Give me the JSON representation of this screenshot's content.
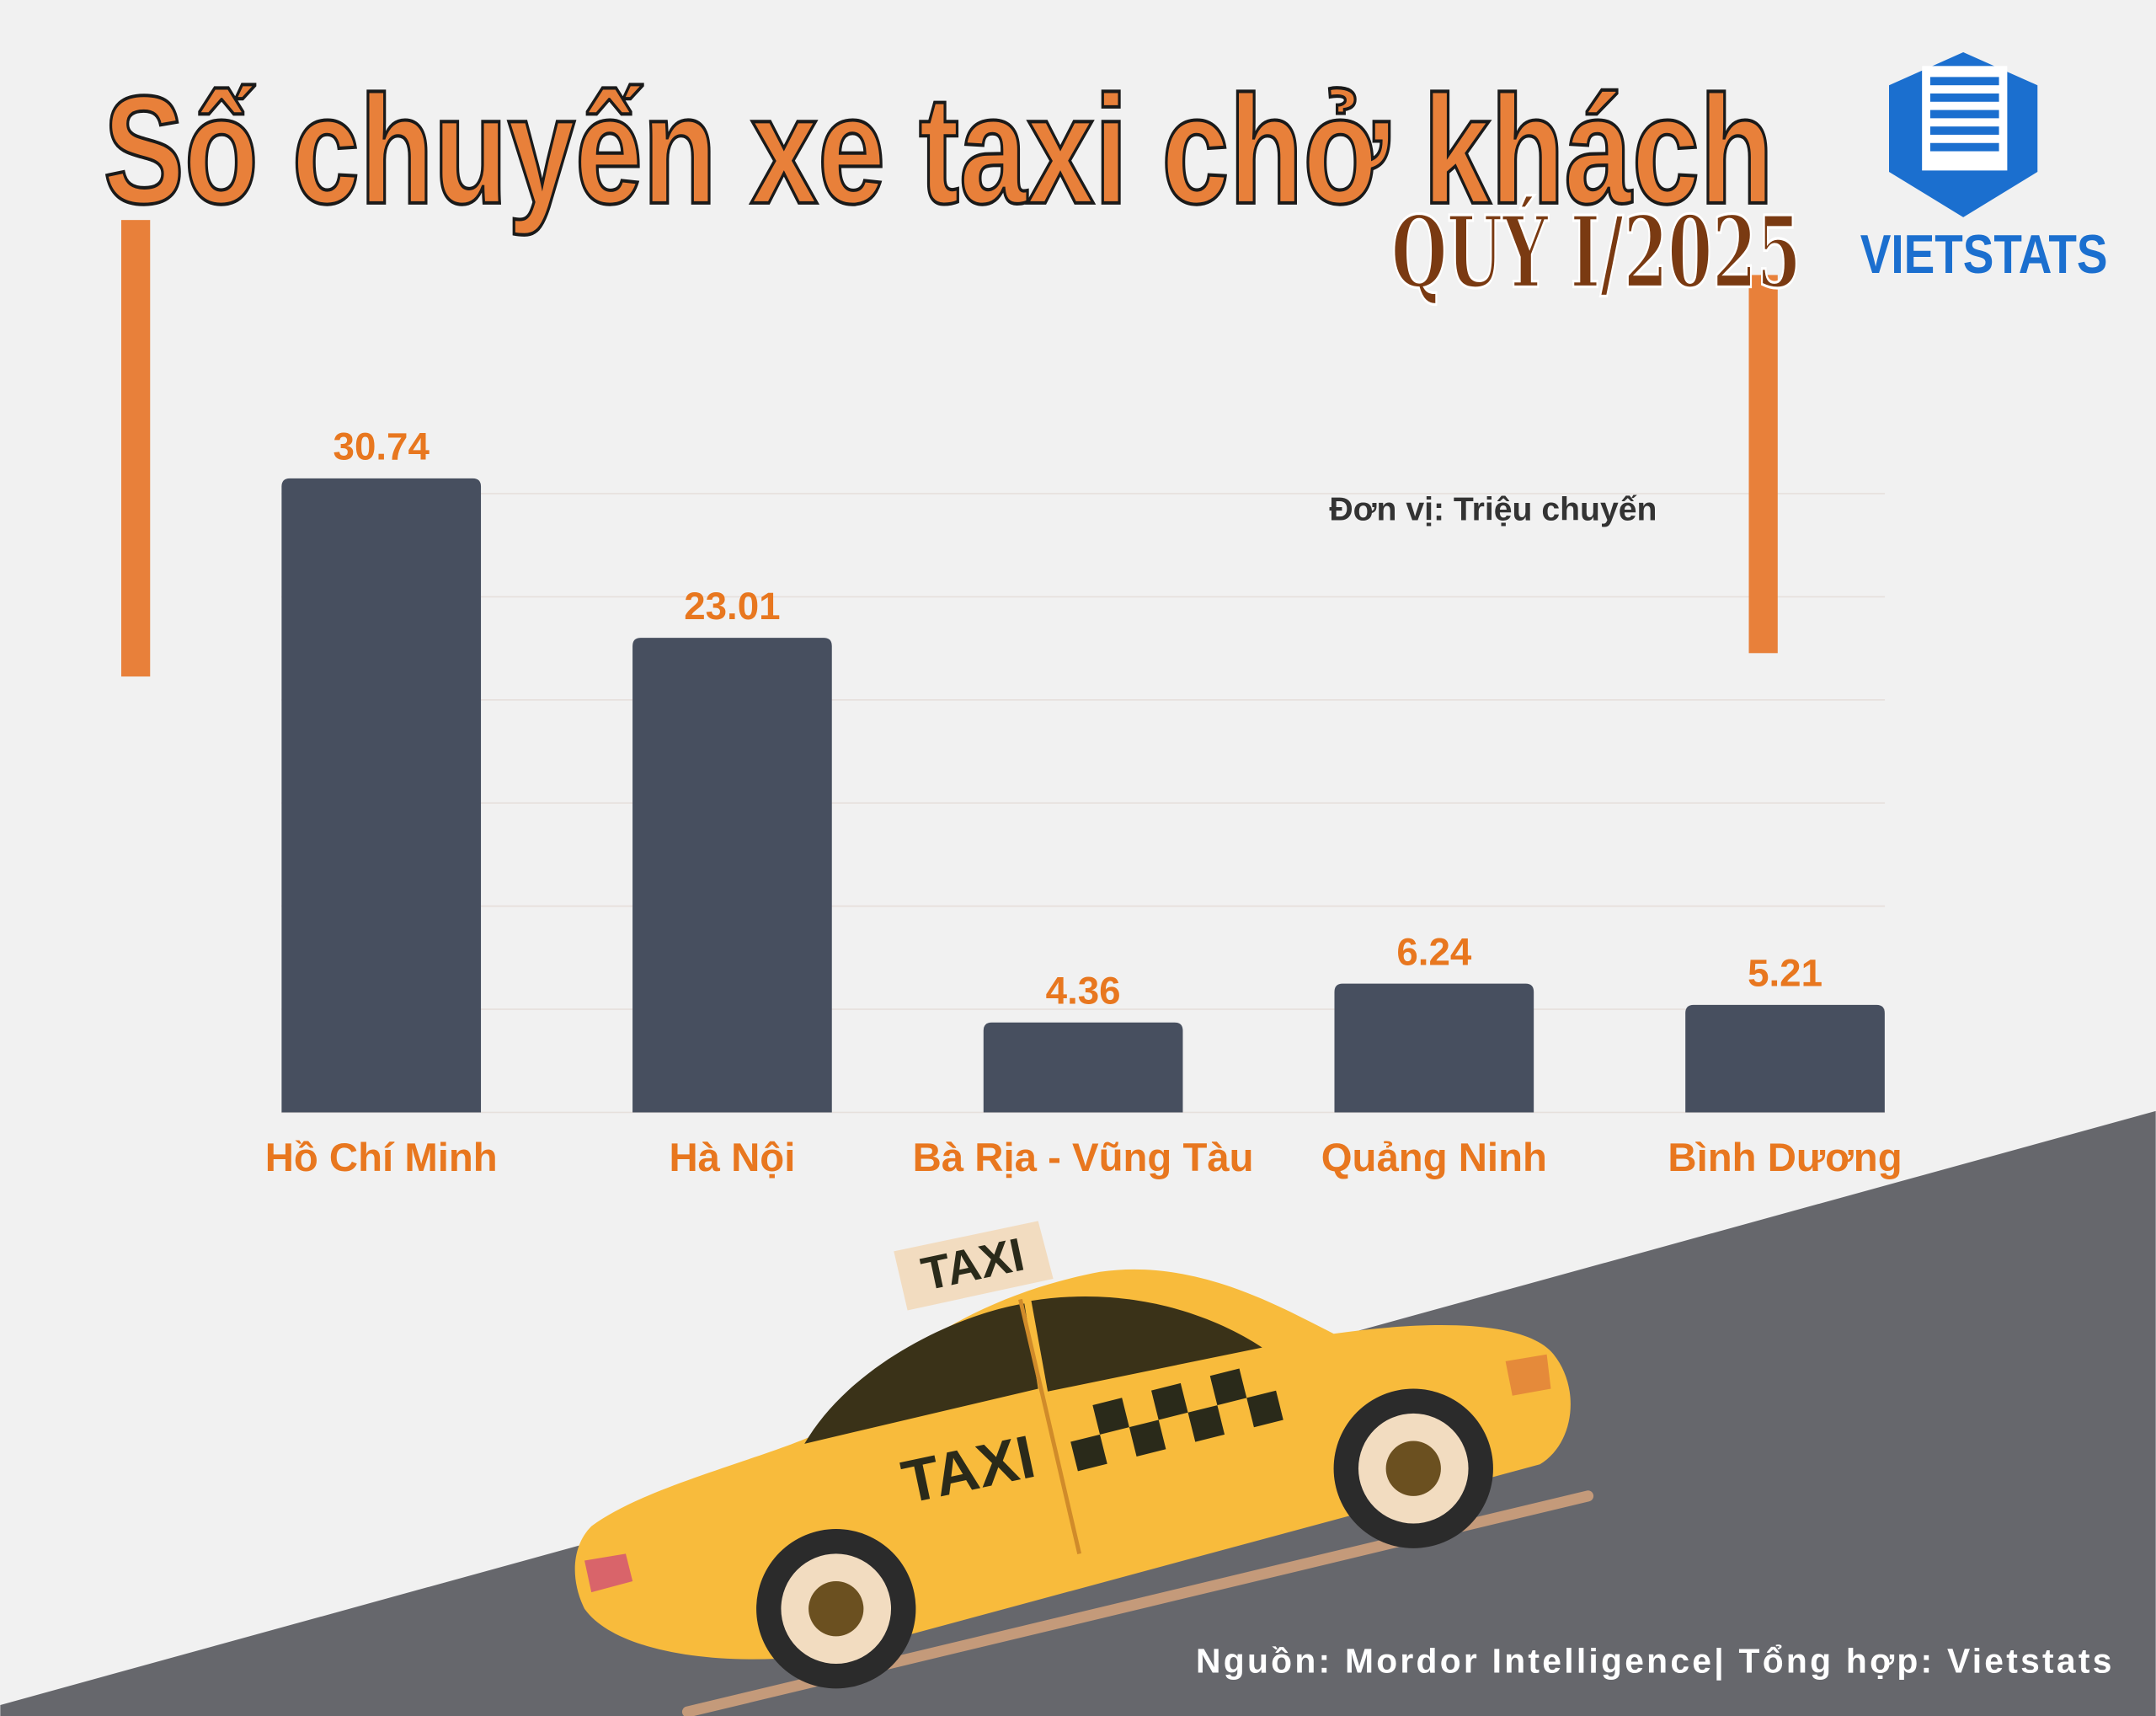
{
  "chart_data": {
    "type": "bar",
    "title": "Số chuyến xe taxi chở khách",
    "subtitle": "QUÝ I/2025",
    "logo": "VIETSTATS",
    "unit_note": "Đơn vị: Triệu chuyến",
    "source": "Nguồn: Mordor Intelligence| Tổng hợp: Vietstats",
    "categories": [
      "Hồ Chí Minh",
      "Hà Nội",
      "Bà Rịa - Vũng Tàu",
      "Quảng Ninh",
      "Bình Dương"
    ],
    "values": [
      30.74,
      23.01,
      4.36,
      6.24,
      5.21
    ],
    "color": "#474f5f",
    "label_color": "#e8771f",
    "ylim": [
      0,
      30
    ],
    "yticks": [
      0,
      5,
      10,
      15,
      20,
      25,
      30
    ],
    "grid": true
  }
}
